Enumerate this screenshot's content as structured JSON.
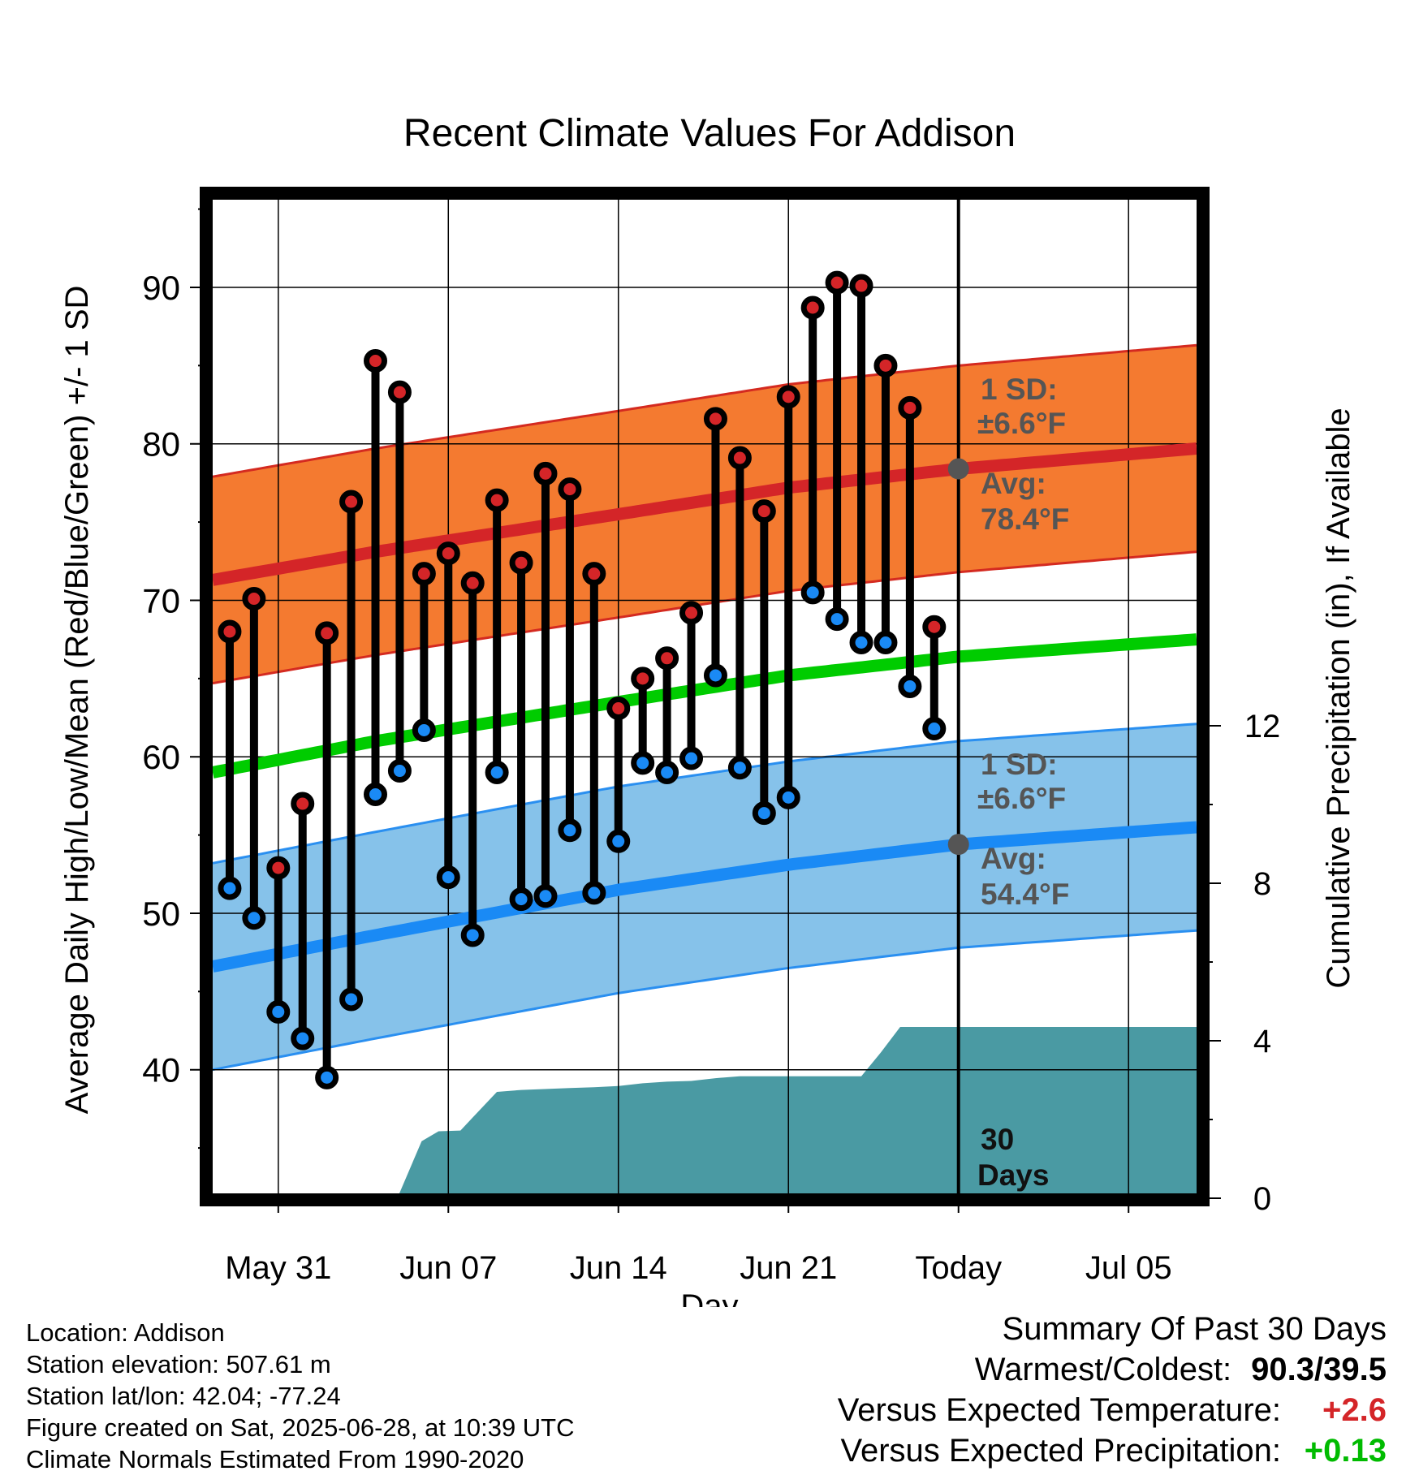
{
  "colors": {
    "high_band": "#f47a30",
    "high_band_edge": "#d42a20",
    "high_avg": "#d42528",
    "low_band": "#86c2ea",
    "low_band_edge": "#2a8ff0",
    "low_avg": "#1a8af5",
    "mean_line": "#00cc00",
    "precip": "#4a9aa3",
    "high_dot": "#d42528",
    "low_dot": "#1a8af5",
    "annotation": "#555555",
    "warm_text": "#d42528",
    "precip_text": "#00bb00"
  },
  "chart_data": {
    "type": "line",
    "title": "Recent Climate Values For Addison",
    "xlabel": "Day",
    "ylabel": "Average Daily High/Low/Mean (Red/Blue/Green) +/- 1 SD",
    "y2label": "Cumulative Precipitation (in), If Available",
    "x_ticks": [
      "May 31",
      "Jun 07",
      "Jun 14",
      "Jun 21",
      "Today",
      "Jul 05"
    ],
    "x_tick_days": [
      31,
      38,
      45,
      52,
      59,
      66
    ],
    "xlim": [
      28.3,
      68.8
    ],
    "y_ticks": [
      40,
      50,
      60,
      70,
      80,
      90
    ],
    "ylim": [
      32.1,
      95.6
    ],
    "y2_ticks": [
      0,
      4,
      8,
      12
    ],
    "y2lim": [
      0,
      12
    ],
    "grid": true,
    "today_day": 59,
    "today_label": "30 Days",
    "days": [
      29,
      30,
      31,
      32,
      33,
      34,
      35,
      36,
      37,
      38,
      39,
      40,
      41,
      42,
      43,
      44,
      45,
      46,
      47,
      48,
      49,
      50,
      51,
      52,
      53,
      54,
      55,
      56,
      57,
      58
    ],
    "highs": [
      68.0,
      70.1,
      52.9,
      57.0,
      67.9,
      76.3,
      85.3,
      83.3,
      71.7,
      73.0,
      71.1,
      76.4,
      72.4,
      78.1,
      77.1,
      71.7,
      63.1,
      65.0,
      66.3,
      69.2,
      81.6,
      79.1,
      75.7,
      83.0,
      88.7,
      90.3,
      90.1,
      85.0,
      82.3,
      68.3
    ],
    "lows": [
      51.6,
      49.7,
      43.7,
      42.0,
      39.5,
      44.5,
      57.6,
      59.1,
      61.7,
      52.3,
      48.6,
      59.0,
      50.9,
      51.1,
      55.3,
      51.3,
      54.6,
      59.6,
      59.0,
      59.9,
      65.2,
      59.3,
      56.4,
      57.4,
      70.5,
      68.8,
      67.3,
      67.3,
      64.5,
      61.8
    ],
    "normals": {
      "days": [
        28.3,
        35,
        45,
        52,
        59,
        68.8
      ],
      "high_avg": [
        71.3,
        73.1,
        75.5,
        77.2,
        78.4,
        79.7
      ],
      "high_sd": 6.6,
      "low_avg": [
        46.6,
        48.6,
        51.5,
        53.1,
        54.4,
        55.5
      ],
      "low_sd": 6.6,
      "mean_avg": [
        59.0,
        61.0,
        63.5,
        65.2,
        66.4,
        67.5
      ]
    },
    "precip": {
      "days": [
        28.3,
        32,
        35.9,
        36.9,
        37.6,
        38.5,
        39.0,
        40.0,
        41.0,
        43.0,
        44.0,
        45.0,
        46.0,
        47.0,
        48.0,
        49.0,
        50.0,
        51.0,
        52.0,
        53.0,
        54.0,
        55.0,
        55.8,
        56.6,
        57.0,
        59.0,
        68.8
      ],
      "values": [
        0,
        0,
        0,
        1.45,
        1.7,
        1.72,
        2.05,
        2.7,
        2.75,
        2.8,
        2.82,
        2.85,
        2.92,
        2.96,
        2.98,
        3.05,
        3.1,
        3.1,
        3.1,
        3.1,
        3.1,
        3.1,
        3.7,
        4.35,
        4.35,
        4.35,
        4.35
      ]
    }
  },
  "annotations": {
    "high_sd_line1": "1 SD:",
    "high_sd_line2": "±6.6°F",
    "high_avg_line1": "Avg:",
    "high_avg_line2": "78.4°F",
    "low_sd_line1": "1 SD:",
    "low_sd_line2": "±6.6°F",
    "low_avg_line1": "Avg:",
    "low_avg_line2": "54.4°F",
    "days_line1": "30",
    "days_line2": "Days"
  },
  "footer": {
    "location": "Location: Addison",
    "elevation": "Station elevation: 507.61 m",
    "latlon": "Station lat/lon: 42.04; -77.24",
    "created": "Figure created on Sat, 2025-06-28, at 10:39 UTC",
    "normals": "Climate Normals Estimated From 1990-2020"
  },
  "summary": {
    "title": "Summary Of Past 30 Days",
    "warm_label": "Warmest/Coldest:",
    "warm_value": "90.3/39.5",
    "temp_label": "Versus Expected Temperature:",
    "temp_value": "+2.6",
    "precip_label": "Versus Expected Precipitation:",
    "precip_value": "+0.13"
  }
}
